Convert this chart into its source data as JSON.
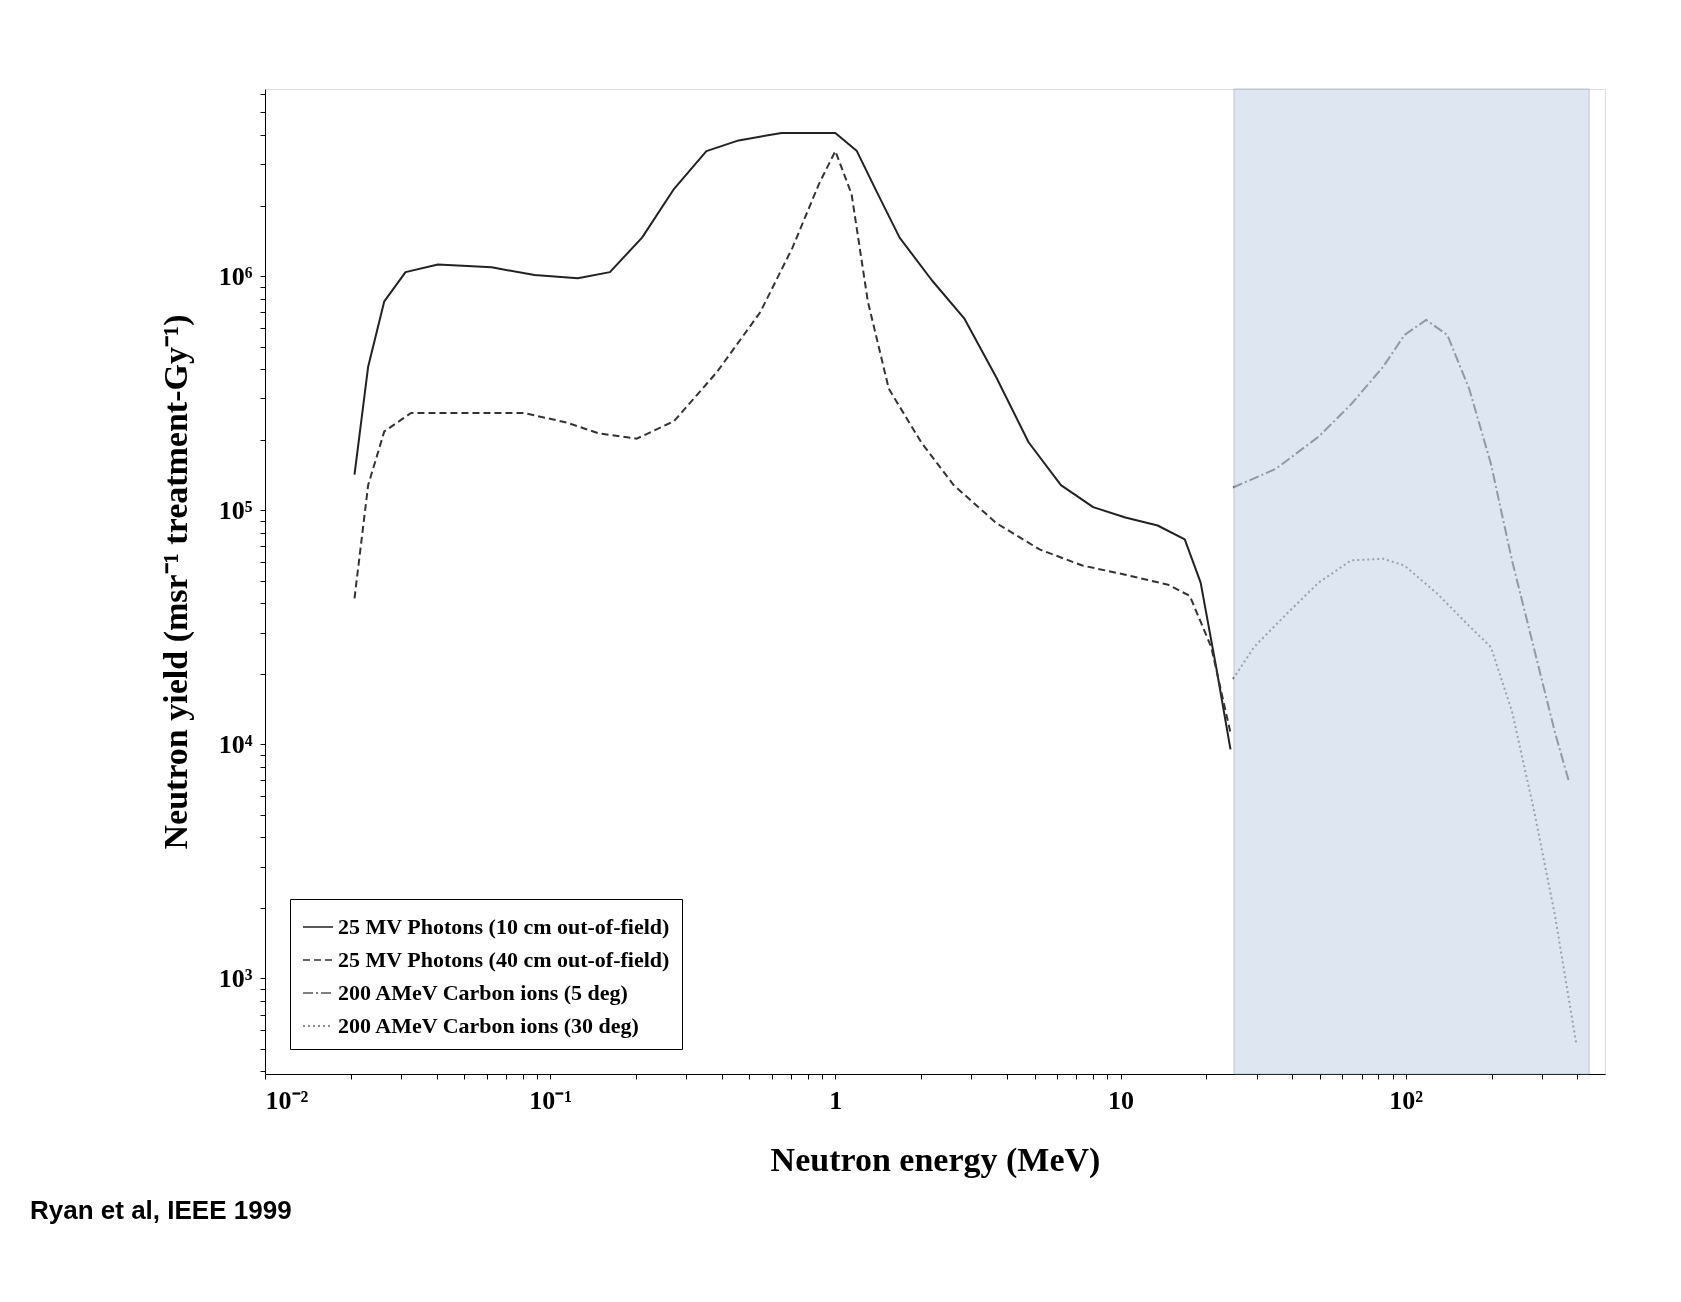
{
  "chart_data": {
    "type": "line",
    "xlabel": "Neutron energy (MeV)",
    "ylabel": "Neutron yield (msr⁻¹ treatment-Gy⁻¹)",
    "log": "xy",
    "grid": false,
    "legend": "bottom left",
    "marker": "none",
    "xlim": [
      0.01,
      500
    ],
    "ylim": [
      390,
      6300000
    ],
    "xticks": [
      {
        "value": 0.01,
        "label": "10⁻²"
      },
      {
        "value": 0.1,
        "label": "10⁻¹"
      },
      1,
      10,
      {
        "value": 100,
        "label": "10²"
      },
      {
        "value": 0.02,
        "label": null
      },
      {
        "value": 0.03,
        "label": null
      },
      {
        "value": 0.04,
        "label": null
      },
      {
        "value": 0.05,
        "label": null
      },
      {
        "value": 0.06,
        "label": null
      },
      {
        "value": 0.07,
        "label": null
      },
      {
        "value": 0.08,
        "label": null
      },
      {
        "value": 0.09,
        "label": null
      },
      {
        "value": 0.2,
        "label": null
      },
      {
        "value": 0.3,
        "label": null
      },
      {
        "value": 0.4,
        "label": null
      },
      {
        "value": 0.5,
        "label": null
      },
      {
        "value": 0.6,
        "label": null
      },
      {
        "value": 0.7,
        "label": null
      },
      {
        "value": 0.8,
        "label": null
      },
      {
        "value": 0.9,
        "label": null
      },
      {
        "value": 2,
        "label": null
      },
      {
        "value": 3,
        "label": null
      },
      {
        "value": 4,
        "label": null
      },
      {
        "value": 5,
        "label": null
      },
      {
        "value": 6,
        "label": null
      },
      {
        "value": 7,
        "label": null
      },
      {
        "value": 8,
        "label": null
      },
      {
        "value": 9,
        "label": null
      },
      {
        "value": 20,
        "label": null
      },
      {
        "value": 30,
        "label": null
      },
      {
        "value": 40,
        "label": null
      },
      {
        "value": 50,
        "label": null
      },
      {
        "value": 60,
        "label": null
      },
      {
        "value": 70,
        "label": null
      },
      {
        "value": 80,
        "label": null
      },
      {
        "value": 90,
        "label": null
      },
      {
        "value": 200,
        "label": null
      },
      {
        "value": 300,
        "label": null
      },
      {
        "value": 400,
        "label": null
      }
    ],
    "yticks": [
      {
        "value": 1000,
        "label": "10³"
      },
      {
        "value": 10000,
        "label": "10⁴"
      },
      {
        "value": 100000,
        "label": "10⁵"
      },
      {
        "value": 1000000,
        "label": "10⁶"
      },
      {
        "value": 400,
        "label": null
      },
      {
        "value": 500,
        "label": null
      },
      {
        "value": 600,
        "label": null
      },
      {
        "value": 700,
        "label": null
      },
      {
        "value": 800,
        "label": null
      },
      {
        "value": 900,
        "label": null
      },
      {
        "value": 2000,
        "label": null
      },
      {
        "value": 3000,
        "label": null
      },
      {
        "value": 4000,
        "label": null
      },
      {
        "value": 5000,
        "label": null
      },
      {
        "value": 6000,
        "label": null
      },
      {
        "value": 7000,
        "label": null
      },
      {
        "value": 8000,
        "label": null
      },
      {
        "value": 9000,
        "label": null
      },
      {
        "value": 20000,
        "label": null
      },
      {
        "value": 30000,
        "label": null
      },
      {
        "value": 40000,
        "label": null
      },
      {
        "value": 50000,
        "label": null
      },
      {
        "value": 60000,
        "label": null
      },
      {
        "value": 70000,
        "label": null
      },
      {
        "value": 80000,
        "label": null
      },
      {
        "value": 90000,
        "label": null
      },
      {
        "value": 200000,
        "label": null
      },
      {
        "value": 300000,
        "label": null
      },
      {
        "value": 400000,
        "label": null
      },
      {
        "value": 500000,
        "label": null
      },
      {
        "value": 600000,
        "label": null
      },
      {
        "value": 700000,
        "label": null
      },
      {
        "value": 800000,
        "label": null
      },
      {
        "value": 900000,
        "label": null
      },
      {
        "value": 2000000,
        "label": null
      },
      {
        "value": 3000000,
        "label": null
      },
      {
        "value": 4000000,
        "label": null
      },
      {
        "value": 5000000,
        "label": null
      },
      {
        "value": 6000000,
        "label": null
      }
    ],
    "bands": [
      {
        "axis": "x",
        "from": 25,
        "to": 440,
        "color": "#c3d3e6"
      }
    ],
    "annotations": [
      "Ryan et al, IEEE 1999"
    ],
    "series": [
      {
        "name": "25 MV Photons (10 cm out-of-field)",
        "color": "#222222",
        "line_style": "solid",
        "x": [
          0.0206,
          0.023,
          0.0262,
          0.0311,
          0.0404,
          0.0624,
          0.0881,
          0.125,
          0.162,
          0.21,
          0.272,
          0.353,
          0.458,
          0.648,
          0.841,
          1.0,
          1.19,
          1.41,
          1.68,
          2.18,
          2.83,
          3.67,
          4.76,
          6.18,
          8.02,
          10.4,
          13.5,
          16.8,
          19.1,
          21.7,
          24.3
        ],
        "values": [
          142000,
          410000,
          780000,
          1040000,
          1120000,
          1090000,
          1010000,
          980000,
          1040000,
          1460000,
          2360000,
          3420000,
          3800000,
          4090000,
          4090000,
          4090000,
          3420000,
          2240000,
          1460000,
          960000,
          660000,
          369000,
          195000,
          128000,
          103000,
          93000,
          86000,
          75000,
          49000,
          21000,
          9500
        ]
      },
      {
        "name": "25 MV Photons (40 cm out-of-field)",
        "color": "#333333",
        "line_style": "dashed",
        "x": [
          0.0206,
          0.023,
          0.0262,
          0.0325,
          0.0524,
          0.0809,
          0.114,
          0.148,
          0.201,
          0.272,
          0.385,
          0.545,
          0.707,
          0.878,
          1.0,
          1.14,
          1.3,
          1.54,
          2.0,
          2.6,
          3.67,
          5.2,
          7.35,
          10.4,
          14.7,
          17.5,
          20.8,
          24.3
        ],
        "values": [
          42000,
          128000,
          217000,
          260000,
          260000,
          260000,
          237000,
          213000,
          202000,
          240000,
          390000,
          700000,
          1320000,
          2490000,
          3420000,
          2240000,
          780000,
          330000,
          195000,
          128000,
          88000,
          68000,
          58000,
          53000,
          48000,
          43000,
          26000,
          11200
        ]
      },
      {
        "name": "200 AMeV Carbon ions (5 deg)",
        "color": "#555555",
        "line_style": "dashdot",
        "x": [
          24.8,
          35,
          49.5,
          64.3,
          83.4,
          99,
          118,
          140,
          167,
          199,
          236,
          281,
          334,
          374
        ],
        "values": [
          125000,
          150000,
          206000,
          283000,
          410000,
          560000,
          650000,
          560000,
          330000,
          158000,
          61000,
          26000,
          11200,
          6900
        ]
      },
      {
        "name": "200 AMeV Carbon ions (30 deg)",
        "color": "#666666",
        "line_style": "dotted",
        "x": [
          24.8,
          29.4,
          38.2,
          49.5,
          64.3,
          83.4,
          99,
          129,
          167,
          199,
          236,
          281,
          334,
          397
        ],
        "values": [
          19000,
          26000,
          36000,
          49000,
          61000,
          62000,
          58000,
          44000,
          32000,
          26000,
          13800,
          5300,
          1850,
          520
        ]
      }
    ]
  }
}
